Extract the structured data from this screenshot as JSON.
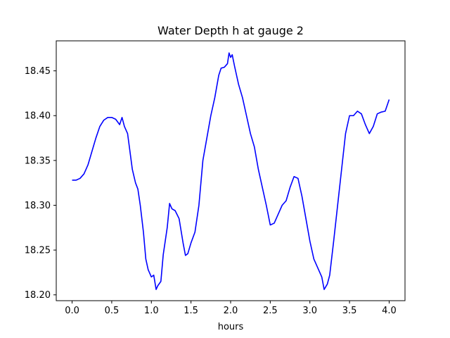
{
  "chart_data": {
    "type": "line",
    "title": "Water Depth h at gauge 2",
    "xlabel": "hours",
    "ylabel": "",
    "xlim": [
      -0.2,
      4.2
    ],
    "ylim": [
      18.1935,
      18.4835
    ],
    "xticks": [
      0.0,
      0.5,
      1.0,
      1.5,
      2.0,
      2.5,
      3.0,
      3.5,
      4.0
    ],
    "xtick_labels": [
      "0.0",
      "0.5",
      "1.0",
      "1.5",
      "2.0",
      "2.5",
      "3.0",
      "3.5",
      "4.0"
    ],
    "yticks": [
      18.2,
      18.25,
      18.3,
      18.35,
      18.4,
      18.45
    ],
    "ytick_labels": [
      "18.20",
      "18.25",
      "18.30",
      "18.35",
      "18.40",
      "18.45"
    ],
    "grid": false,
    "series": [
      {
        "color": "#0000ff",
        "x": [
          0.0,
          0.05,
          0.1,
          0.15,
          0.2,
          0.25,
          0.3,
          0.35,
          0.4,
          0.45,
          0.5,
          0.55,
          0.6,
          0.63,
          0.66,
          0.7,
          0.73,
          0.76,
          0.8,
          0.83,
          0.86,
          0.9,
          0.93,
          0.96,
          1.0,
          1.03,
          1.06,
          1.08,
          1.12,
          1.15,
          1.2,
          1.23,
          1.26,
          1.3,
          1.35,
          1.4,
          1.43,
          1.46,
          1.5,
          1.55,
          1.6,
          1.65,
          1.7,
          1.75,
          1.8,
          1.85,
          1.88,
          1.92,
          1.96,
          1.98,
          2.0,
          2.02,
          2.05,
          2.1,
          2.15,
          2.2,
          2.25,
          2.3,
          2.35,
          2.4,
          2.45,
          2.5,
          2.55,
          2.6,
          2.65,
          2.7,
          2.75,
          2.8,
          2.85,
          2.9,
          2.95,
          3.0,
          3.05,
          3.1,
          3.15,
          3.18,
          3.22,
          3.25,
          3.3,
          3.35,
          3.4,
          3.45,
          3.5,
          3.55,
          3.6,
          3.65,
          3.7,
          3.75,
          3.8,
          3.85,
          3.9,
          3.95,
          4.0
        ],
        "y": [
          18.328,
          18.328,
          18.33,
          18.335,
          18.345,
          18.36,
          18.375,
          18.388,
          18.395,
          18.398,
          18.398,
          18.396,
          18.39,
          18.398,
          18.388,
          18.38,
          18.36,
          18.34,
          18.325,
          18.318,
          18.3,
          18.27,
          18.24,
          18.228,
          18.22,
          18.222,
          18.206,
          18.21,
          18.215,
          18.245,
          18.275,
          18.302,
          18.296,
          18.294,
          18.285,
          18.258,
          18.244,
          18.246,
          18.258,
          18.27,
          18.3,
          18.35,
          18.375,
          18.4,
          18.42,
          18.445,
          18.453,
          18.454,
          18.458,
          18.47,
          18.465,
          18.468,
          18.455,
          18.435,
          18.42,
          18.4,
          18.38,
          18.365,
          18.34,
          18.32,
          18.3,
          18.278,
          18.28,
          18.29,
          18.3,
          18.305,
          18.32,
          18.332,
          18.33,
          18.31,
          18.285,
          18.26,
          18.24,
          18.23,
          18.22,
          18.206,
          18.212,
          18.222,
          18.26,
          18.3,
          18.34,
          18.38,
          18.4,
          18.4,
          18.405,
          18.402,
          18.39,
          18.38,
          18.388,
          18.402,
          18.404,
          18.405,
          18.418
        ]
      }
    ]
  }
}
